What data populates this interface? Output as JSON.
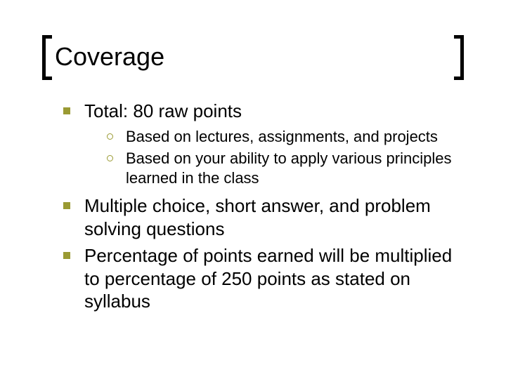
{
  "title": "Coverage",
  "colors": {
    "bullet_fill": "#9a9a33",
    "bullet_hollow_border": "#9a9a33",
    "text": "#000000",
    "bracket": "#000000",
    "background": "#ffffff"
  },
  "typography": {
    "title_fontsize": 36,
    "l1_fontsize": 26,
    "l2_fontsize": 22,
    "font_family": "Arial"
  },
  "bullets": [
    {
      "text": "Total:  80 raw points",
      "sub": [
        "Based on lectures, assignments, and projects",
        "Based on your ability to apply various principles learned in the class"
      ]
    },
    {
      "text": "Multiple choice, short answer, and problem solving questions",
      "sub": []
    },
    {
      "text": "Percentage of points earned will be multiplied to percentage of 250 points as stated on syllabus",
      "sub": []
    }
  ]
}
